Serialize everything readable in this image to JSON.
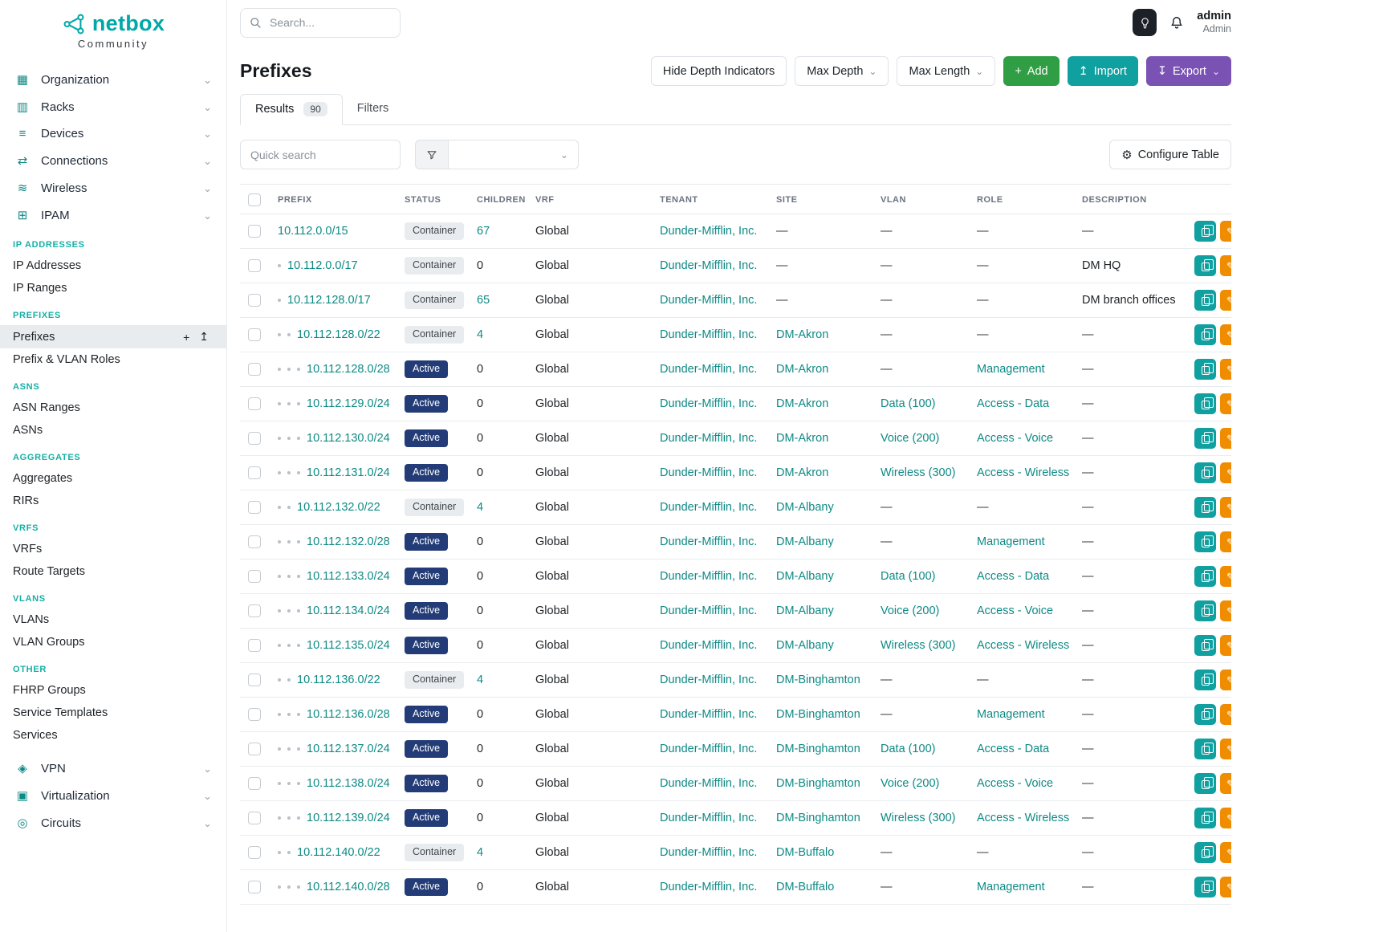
{
  "brand": {
    "name": "netbox",
    "subtitle": "Community"
  },
  "topbar": {
    "search_placeholder": "Search...",
    "user": {
      "name": "admin",
      "role": "Admin"
    }
  },
  "sidebar": {
    "top_items": [
      {
        "label": "Organization",
        "icon": "organization-icon",
        "glyph": "▦"
      },
      {
        "label": "Racks",
        "icon": "racks-icon",
        "glyph": "▥"
      },
      {
        "label": "Devices",
        "icon": "devices-icon",
        "glyph": "≡"
      },
      {
        "label": "Connections",
        "icon": "connections-icon",
        "glyph": "⇄"
      },
      {
        "label": "Wireless",
        "icon": "wireless-icon",
        "glyph": "≋"
      },
      {
        "label": "IPAM",
        "icon": "ipam-icon",
        "glyph": "⊞"
      }
    ],
    "sections": [
      {
        "title": "IP ADDRESSES",
        "items": [
          {
            "label": "IP Addresses"
          },
          {
            "label": "IP Ranges"
          }
        ]
      },
      {
        "title": "PREFIXES",
        "items": [
          {
            "label": "Prefixes",
            "active": true,
            "mini_buttons": [
              {
                "name": "add",
                "glyph": "+"
              },
              {
                "name": "import",
                "glyph": "↥"
              }
            ]
          },
          {
            "label": "Prefix & VLAN Roles"
          }
        ]
      },
      {
        "title": "ASNS",
        "items": [
          {
            "label": "ASN Ranges"
          },
          {
            "label": "ASNs"
          }
        ]
      },
      {
        "title": "AGGREGATES",
        "items": [
          {
            "label": "Aggregates"
          },
          {
            "label": "RIRs"
          }
        ]
      },
      {
        "title": "VRFS",
        "items": [
          {
            "label": "VRFs"
          },
          {
            "label": "Route Targets"
          }
        ]
      },
      {
        "title": "VLANS",
        "items": [
          {
            "label": "VLANs"
          },
          {
            "label": "VLAN Groups"
          }
        ]
      },
      {
        "title": "OTHER",
        "items": [
          {
            "label": "FHRP Groups"
          },
          {
            "label": "Service Templates"
          },
          {
            "label": "Services"
          }
        ]
      }
    ],
    "bottom_items": [
      {
        "label": "VPN",
        "icon": "vpn-icon",
        "glyph": "◈"
      },
      {
        "label": "Virtualization",
        "icon": "virtualization-icon",
        "glyph": "▣"
      },
      {
        "label": "Circuits",
        "icon": "circuits-icon",
        "glyph": "◎"
      }
    ]
  },
  "page": {
    "title": "Prefixes",
    "toolbar": {
      "hide_depth": "Hide Depth Indicators",
      "max_depth": "Max Depth",
      "max_length": "Max Length",
      "add": "Add",
      "import": "Import",
      "export": "Export"
    },
    "tabs": {
      "results": "Results",
      "results_count": "90",
      "filters": "Filters"
    },
    "quick_search_placeholder": "Quick search",
    "configure_table": "Configure Table"
  },
  "table": {
    "columns": [
      "PREFIX",
      "STATUS",
      "CHILDREN",
      "VRF",
      "TENANT",
      "SITE",
      "VLAN",
      "ROLE",
      "DESCRIPTION"
    ],
    "empty_cell": "—",
    "rows": [
      {
        "depth": 0,
        "prefix": "10.112.0.0/15",
        "status": "Container",
        "children": "67",
        "vrf": "Global",
        "tenant": "Dunder-Mifflin, Inc.",
        "site": "",
        "vlan": "",
        "role": "",
        "description": ""
      },
      {
        "depth": 1,
        "prefix": "10.112.0.0/17",
        "status": "Container",
        "children": "0",
        "vrf": "Global",
        "tenant": "Dunder-Mifflin, Inc.",
        "site": "",
        "vlan": "",
        "role": "",
        "description": "DM HQ"
      },
      {
        "depth": 1,
        "prefix": "10.112.128.0/17",
        "status": "Container",
        "children": "65",
        "vrf": "Global",
        "tenant": "Dunder-Mifflin, Inc.",
        "site": "",
        "vlan": "",
        "role": "",
        "description": "DM branch offices"
      },
      {
        "depth": 2,
        "prefix": "10.112.128.0/22",
        "status": "Container",
        "children": "4",
        "vrf": "Global",
        "tenant": "Dunder-Mifflin, Inc.",
        "site": "DM-Akron",
        "vlan": "",
        "role": "",
        "description": ""
      },
      {
        "depth": 3,
        "prefix": "10.112.128.0/28",
        "status": "Active",
        "children": "0",
        "vrf": "Global",
        "tenant": "Dunder-Mifflin, Inc.",
        "site": "DM-Akron",
        "vlan": "",
        "role": "Management",
        "description": ""
      },
      {
        "depth": 3,
        "prefix": "10.112.129.0/24",
        "status": "Active",
        "children": "0",
        "vrf": "Global",
        "tenant": "Dunder-Mifflin, Inc.",
        "site": "DM-Akron",
        "vlan": "Data (100)",
        "role": "Access - Data",
        "description": ""
      },
      {
        "depth": 3,
        "prefix": "10.112.130.0/24",
        "status": "Active",
        "children": "0",
        "vrf": "Global",
        "tenant": "Dunder-Mifflin, Inc.",
        "site": "DM-Akron",
        "vlan": "Voice (200)",
        "role": "Access - Voice",
        "description": ""
      },
      {
        "depth": 3,
        "prefix": "10.112.131.0/24",
        "status": "Active",
        "children": "0",
        "vrf": "Global",
        "tenant": "Dunder-Mifflin, Inc.",
        "site": "DM-Akron",
        "vlan": "Wireless (300)",
        "role": "Access - Wireless",
        "description": ""
      },
      {
        "depth": 2,
        "prefix": "10.112.132.0/22",
        "status": "Container",
        "children": "4",
        "vrf": "Global",
        "tenant": "Dunder-Mifflin, Inc.",
        "site": "DM-Albany",
        "vlan": "",
        "role": "",
        "description": ""
      },
      {
        "depth": 3,
        "prefix": "10.112.132.0/28",
        "status": "Active",
        "children": "0",
        "vrf": "Global",
        "tenant": "Dunder-Mifflin, Inc.",
        "site": "DM-Albany",
        "vlan": "",
        "role": "Management",
        "description": ""
      },
      {
        "depth": 3,
        "prefix": "10.112.133.0/24",
        "status": "Active",
        "children": "0",
        "vrf": "Global",
        "tenant": "Dunder-Mifflin, Inc.",
        "site": "DM-Albany",
        "vlan": "Data (100)",
        "role": "Access - Data",
        "description": ""
      },
      {
        "depth": 3,
        "prefix": "10.112.134.0/24",
        "status": "Active",
        "children": "0",
        "vrf": "Global",
        "tenant": "Dunder-Mifflin, Inc.",
        "site": "DM-Albany",
        "vlan": "Voice (200)",
        "role": "Access - Voice",
        "description": ""
      },
      {
        "depth": 3,
        "prefix": "10.112.135.0/24",
        "status": "Active",
        "children": "0",
        "vrf": "Global",
        "tenant": "Dunder-Mifflin, Inc.",
        "site": "DM-Albany",
        "vlan": "Wireless (300)",
        "role": "Access - Wireless",
        "description": ""
      },
      {
        "depth": 2,
        "prefix": "10.112.136.0/22",
        "status": "Container",
        "children": "4",
        "vrf": "Global",
        "tenant": "Dunder-Mifflin, Inc.",
        "site": "DM-Binghamton",
        "vlan": "",
        "role": "",
        "description": ""
      },
      {
        "depth": 3,
        "prefix": "10.112.136.0/28",
        "status": "Active",
        "children": "0",
        "vrf": "Global",
        "tenant": "Dunder-Mifflin, Inc.",
        "site": "DM-Binghamton",
        "vlan": "",
        "role": "Management",
        "description": ""
      },
      {
        "depth": 3,
        "prefix": "10.112.137.0/24",
        "status": "Active",
        "children": "0",
        "vrf": "Global",
        "tenant": "Dunder-Mifflin, Inc.",
        "site": "DM-Binghamton",
        "vlan": "Data (100)",
        "role": "Access - Data",
        "description": ""
      },
      {
        "depth": 3,
        "prefix": "10.112.138.0/24",
        "status": "Active",
        "children": "0",
        "vrf": "Global",
        "tenant": "Dunder-Mifflin, Inc.",
        "site": "DM-Binghamton",
        "vlan": "Voice (200)",
        "role": "Access - Voice",
        "description": ""
      },
      {
        "depth": 3,
        "prefix": "10.112.139.0/24",
        "status": "Active",
        "children": "0",
        "vrf": "Global",
        "tenant": "Dunder-Mifflin, Inc.",
        "site": "DM-Binghamton",
        "vlan": "Wireless (300)",
        "role": "Access - Wireless",
        "description": ""
      },
      {
        "depth": 2,
        "prefix": "10.112.140.0/22",
        "status": "Container",
        "children": "4",
        "vrf": "Global",
        "tenant": "Dunder-Mifflin, Inc.",
        "site": "DM-Buffalo",
        "vlan": "",
        "role": "",
        "description": ""
      },
      {
        "depth": 3,
        "prefix": "10.112.140.0/28",
        "status": "Active",
        "children": "0",
        "vrf": "Global",
        "tenant": "Dunder-Mifflin, Inc.",
        "site": "DM-Buffalo",
        "vlan": "",
        "role": "Management",
        "description": ""
      }
    ]
  },
  "colors": {
    "brand": "#00a8a8",
    "section": "#14b0a6",
    "teal_link": "#0d8a85",
    "add_green": "#2f9e44",
    "import_teal": "#10a0a0",
    "export_purple": "#7952b3",
    "active_badge": "#233c77",
    "orange": "#f08c00"
  }
}
